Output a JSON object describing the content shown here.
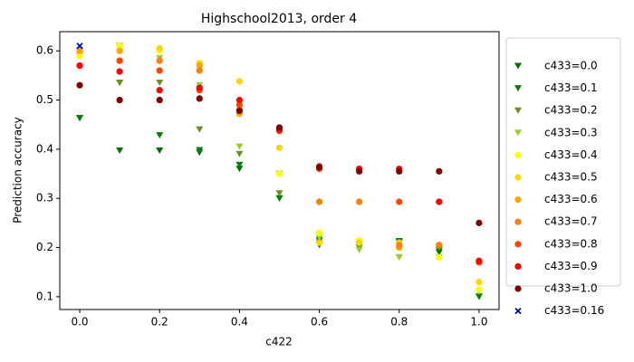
{
  "chart_data": {
    "type": "scatter",
    "title": "Highschool2013, order 4",
    "x_label": "c422",
    "y_label": "Prediction accuracy",
    "x": [
      0,
      0.1,
      0.2,
      0.3,
      0.4,
      0.5,
      0.6,
      0.7,
      0.8,
      0.9,
      1
    ],
    "xlim": [
      -0.05,
      1.05
    ],
    "ylim": [
      0.074,
      0.639
    ],
    "xticks": [
      {
        "value": 0,
        "label": "0.0"
      },
      0.2,
      0.4,
      0.6,
      0.8,
      {
        "value": 1,
        "label": "1.0"
      }
    ],
    "yticks": [
      0.1,
      0.2,
      0.3,
      0.4,
      0.5,
      0.6
    ],
    "legend": "right",
    "series": [
      {
        "name": "c433=0.0",
        "color": "#007000",
        "marker": "v",
        "values": [
          0.463,
          0.397,
          0.397,
          0.393,
          0.36,
          0.3,
          0.205,
          0.205,
          0.21,
          0.19,
          0.1
        ]
      },
      {
        "name": "c433=0.1",
        "color": "#008000",
        "marker": "v",
        "values": [
          0.463,
          0.535,
          0.428,
          0.398,
          0.368,
          0.3,
          0.215,
          0.21,
          0.213,
          0.195,
          0.1
        ]
      },
      {
        "name": "c433=0.2",
        "color": "#6b8e23",
        "marker": "v",
        "values": [
          0.59,
          0.535,
          0.535,
          0.44,
          0.39,
          0.31,
          0.21,
          0.2,
          0.18,
          0.2,
          0.11
        ]
      },
      {
        "name": "c433=0.3",
        "color": "#9acd32",
        "marker": "v",
        "values": [
          0.6,
          0.61,
          0.585,
          0.53,
          0.405,
          0.35,
          0.22,
          0.195,
          0.18,
          0.18,
          0.11
        ]
      },
      {
        "name": "c433=0.4",
        "color": "#ffff00",
        "marker": "o",
        "values": [
          0.59,
          0.61,
          0.6,
          0.57,
          0.48,
          0.35,
          0.23,
          0.215,
          0.2,
          0.18,
          0.115
        ]
      },
      {
        "name": "c433=0.5",
        "color": "#ffd700",
        "marker": "o",
        "values": [
          0.6,
          0.6,
          0.605,
          0.575,
          0.538,
          0.403,
          0.21,
          0.21,
          0.21,
          0.205,
          0.13
        ]
      },
      {
        "name": "c433=0.6",
        "color": "#ffa500",
        "marker": "o",
        "values": [
          0.6,
          0.6,
          0.58,
          0.57,
          0.472,
          0.44,
          0.293,
          0.293,
          0.2,
          0.205,
          0.17
        ]
      },
      {
        "name": "c433=0.7",
        "color": "#ff7f0e",
        "marker": "o",
        "values": [
          0.57,
          0.58,
          0.58,
          0.56,
          0.48,
          0.44,
          0.293,
          0.293,
          0.205,
          0.205,
          0.17
        ]
      },
      {
        "name": "c433=0.8",
        "color": "#ff4500",
        "marker": "o",
        "values": [
          0.57,
          0.58,
          0.56,
          0.52,
          0.49,
          0.437,
          0.36,
          0.36,
          0.293,
          0.293,
          0.17
        ]
      },
      {
        "name": "c433=0.9",
        "color": "#ff0000",
        "marker": "o",
        "values": [
          0.57,
          0.558,
          0.52,
          0.525,
          0.5,
          0.44,
          0.365,
          0.36,
          0.36,
          0.293,
          0.173
        ]
      },
      {
        "name": "c433=1.0",
        "color": "#800000",
        "marker": "o",
        "values": [
          0.53,
          0.5,
          0.5,
          0.503,
          0.478,
          0.444,
          0.363,
          0.355,
          0.355,
          0.355,
          0.25
        ]
      },
      {
        "name": "c433=0.16",
        "color": "#0000cd",
        "marker": "x",
        "x": [
          0
        ],
        "values": [
          0.61
        ]
      }
    ]
  }
}
